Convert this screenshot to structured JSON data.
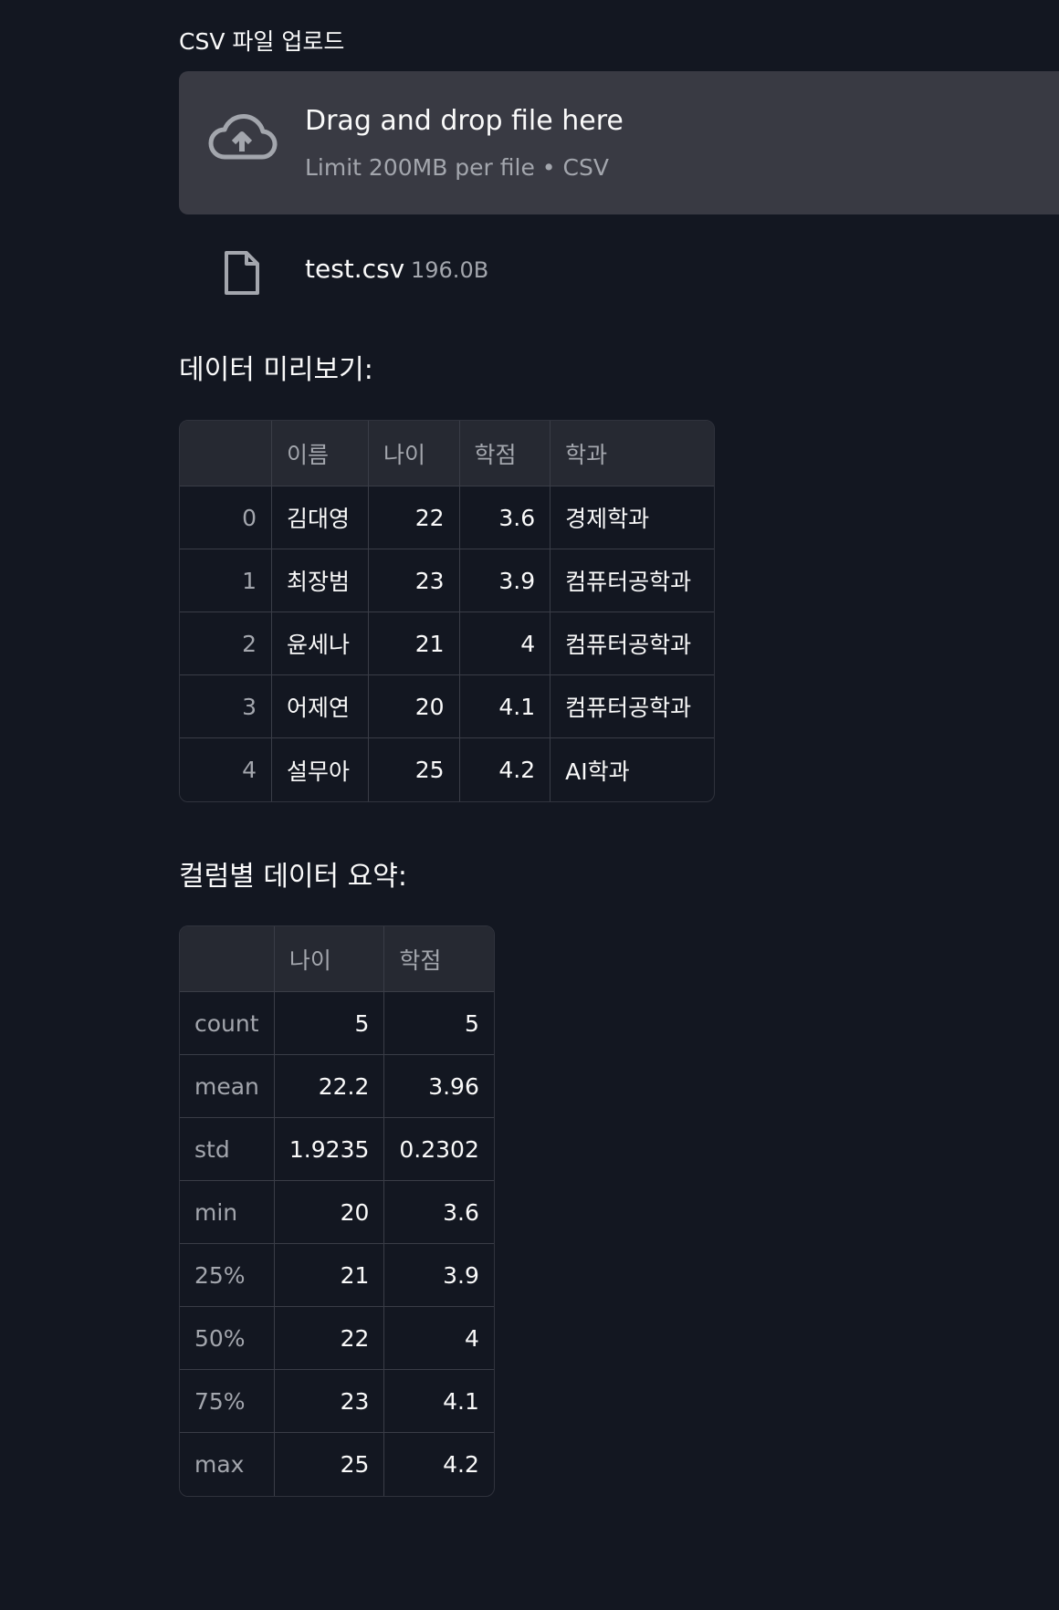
{
  "uploader": {
    "label": "CSV 파일 업로드",
    "drop_title": "Drag and drop file here",
    "drop_subtitle": "Limit 200MB per file • CSV",
    "file": {
      "name": "test.csv",
      "size": "196.0B"
    }
  },
  "preview": {
    "title": "데이터 미리보기:",
    "columns": [
      "",
      "이름",
      "나이",
      "학점",
      "학과"
    ],
    "rows": [
      {
        "index": "0",
        "name": "김대영",
        "age": "22",
        "gpa": "3.6",
        "dept": "경제학과"
      },
      {
        "index": "1",
        "name": "최장범",
        "age": "23",
        "gpa": "3.9",
        "dept": "컴퓨터공학과"
      },
      {
        "index": "2",
        "name": "윤세나",
        "age": "21",
        "gpa": "4",
        "dept": "컴퓨터공학과"
      },
      {
        "index": "3",
        "name": "어제연",
        "age": "20",
        "gpa": "4.1",
        "dept": "컴퓨터공학과"
      },
      {
        "index": "4",
        "name": "설무아",
        "age": "25",
        "gpa": "4.2",
        "dept": "AI학과"
      }
    ]
  },
  "summary": {
    "title": "컬럼별 데이터 요약:",
    "columns": [
      "",
      "나이",
      "학점"
    ],
    "rows": [
      {
        "stat": "count",
        "age": "5",
        "gpa": "5"
      },
      {
        "stat": "mean",
        "age": "22.2",
        "gpa": "3.96"
      },
      {
        "stat": "std",
        "age": "1.9235",
        "gpa": "0.2302"
      },
      {
        "stat": "min",
        "age": "20",
        "gpa": "3.6"
      },
      {
        "stat": "25%",
        "age": "21",
        "gpa": "3.9"
      },
      {
        "stat": "50%",
        "age": "22",
        "gpa": "4"
      },
      {
        "stat": "75%",
        "age": "23",
        "gpa": "4.1"
      },
      {
        "stat": "max",
        "age": "25",
        "gpa": "4.2"
      }
    ]
  },
  "icons": {
    "upload": "cloud-upload-icon",
    "file": "file-icon"
  }
}
